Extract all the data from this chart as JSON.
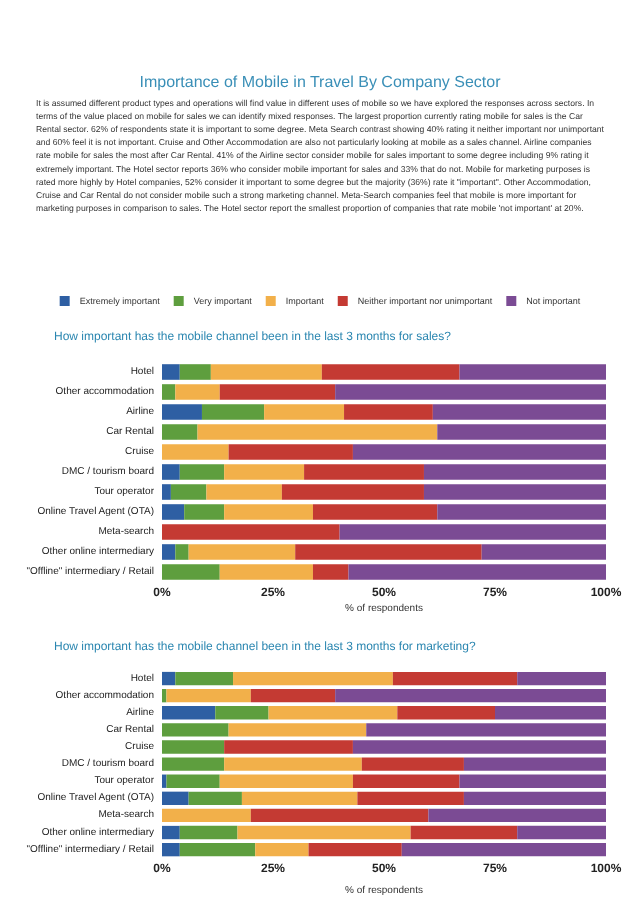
{
  "chart_data": [
    {
      "type": "bar",
      "orientation": "horizontal",
      "stacked": true,
      "title": "Importance of Mobile in Travel By Company Sector",
      "subtitle": "How important has the mobile channel been in the last 3 months for sales?",
      "xlabel": "% of respondents",
      "annotations": [
        "It is assumed different product types and operations will find value in different uses of mobile so we have explored the responses across sectors. In terms of the value placed on mobile for sales we can identify mixed responses. The largest proportion currently rating mobile for sales is the Car Rental sector. 62% of respondents state it is important to some degree. Meta Search contrast showing 40% rating it neither important nor unimportant and 60% feel it is not important. Cruise and Other Accommodation are also not particularly looking at mobile as a sales channel. Airline companies rate mobile for sales the most after Car Rental. 41% of the Airline sector consider mobile for sales important to some degree including 9% rating it extremely important. The Hotel sector reports 36% who consider mobile important for sales and 33% that do not. Mobile for marketing purposes is rated more highly by Hotel companies, 52% consider it important to some degree but the majority (36%) rate it \"important\". Other Accommodation, Cruise and Car Rental do not consider mobile such a strong marketing channel. Meta-Search companies feel that mobile is more important for marketing purposes in comparison to sales. The Hotel sector report the smallest proportion of companies that rate mobile 'not important' at 20%."
      ],
      "categories": [
        "Hotel",
        "Other accommodation",
        "Airline",
        "Car Rental",
        "Cruise",
        "DMC / tourism board",
        "Tour operator",
        "Online Travel Agent (OTA)",
        "Meta-search",
        "Other online intermediary",
        "\"Offline\" intermediary / Retail"
      ],
      "series": [
        {
          "name": "Extremely important",
          "color": "#2e5fa3",
          "values": [
            4,
            0,
            9,
            0,
            0,
            4,
            2,
            5,
            0,
            3,
            0
          ]
        },
        {
          "name": "Very important",
          "color": "#5e9e3e",
          "values": [
            7,
            3,
            14,
            8,
            0,
            10,
            8,
            9,
            0,
            3,
            13
          ]
        },
        {
          "name": "Important",
          "color": "#f2b04a",
          "values": [
            25,
            10,
            18,
            54,
            15,
            18,
            17,
            20,
            0,
            24,
            21
          ]
        },
        {
          "name": "Neither important nor unimportant",
          "color": "#c43a33",
          "values": [
            31,
            26,
            20,
            0,
            28,
            27,
            32,
            28,
            40,
            42,
            8
          ]
        },
        {
          "name": "Not important",
          "color": "#7b4b94",
          "values": [
            33,
            61,
            39,
            38,
            57,
            41,
            41,
            38,
            60,
            28,
            58
          ]
        }
      ],
      "xlim": [
        0,
        100
      ],
      "xticks": [
        {
          "value": 0,
          "label": "0%"
        },
        {
          "value": 25,
          "label": "25%"
        },
        {
          "value": 50,
          "label": "50%"
        },
        {
          "value": 75,
          "label": "75%"
        },
        {
          "value": 100,
          "label": "100%"
        }
      ],
      "legend": "top"
    },
    {
      "type": "bar",
      "orientation": "horizontal",
      "stacked": true,
      "subtitle": "How important has the mobile channel been in the last 3 months for marketing?",
      "xlabel": "% of respondents",
      "categories": [
        "Hotel",
        "Other accommodation",
        "Airline",
        "Car Rental",
        "Cruise",
        "DMC / tourism board",
        "Tour operator",
        "Online Travel Agent (OTA)",
        "Meta-search",
        "Other online intermediary",
        "\"Offline\" intermediary / Retail"
      ],
      "series": [
        {
          "color": "#2e5fa3",
          "values": [
            3,
            0,
            12,
            0,
            0,
            0,
            1,
            6,
            0,
            4,
            4
          ]
        },
        {
          "color": "#5e9e3e",
          "values": [
            13,
            1,
            12,
            15,
            14,
            14,
            12,
            12,
            0,
            13,
            17
          ]
        },
        {
          "color": "#f2b04a",
          "values": [
            36,
            19,
            29,
            31,
            0,
            31,
            30,
            26,
            20,
            39,
            12
          ]
        },
        {
          "color": "#c43a33",
          "values": [
            28,
            19,
            22,
            0,
            29,
            23,
            24,
            24,
            40,
            24,
            21
          ]
        },
        {
          "color": "#7b4b94",
          "values": [
            20,
            61,
            25,
            54,
            57,
            32,
            33,
            32,
            40,
            20,
            46
          ]
        }
      ],
      "xlim": [
        0,
        100
      ],
      "xticks": [
        {
          "value": 0,
          "label": "0%"
        },
        {
          "value": 25,
          "label": "25%"
        },
        {
          "value": 50,
          "label": "50%"
        },
        {
          "value": 75,
          "label": "75%"
        },
        {
          "value": 100,
          "label": "100%"
        }
      ],
      "legend": false
    }
  ]
}
